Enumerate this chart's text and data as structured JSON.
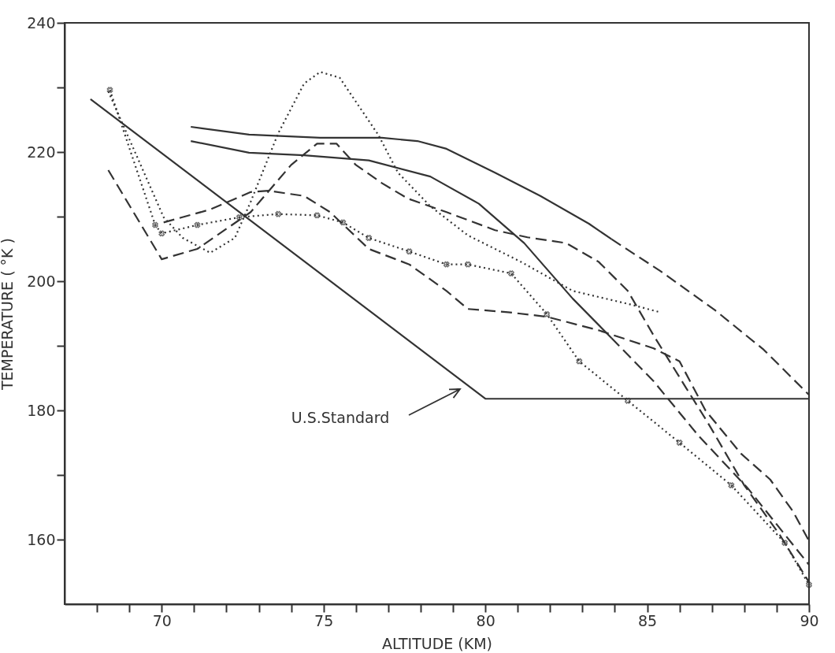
{
  "chart_data": {
    "type": "line",
    "xlabel": "ALTITUDE  (KM)",
    "ylabel": "TEMPERATURE  ( °K )",
    "xlim": [
      67,
      90
    ],
    "ylim": [
      150,
      240
    ],
    "xticks": [
      {
        "value": 68,
        "label": null
      },
      {
        "value": 69,
        "label": null
      },
      70,
      {
        "value": 71,
        "label": null
      },
      {
        "value": 72,
        "label": null
      },
      {
        "value": 73,
        "label": null
      },
      {
        "value": 74,
        "label": null
      },
      75,
      {
        "value": 76,
        "label": null
      },
      {
        "value": 77,
        "label": null
      },
      {
        "value": 78,
        "label": null
      },
      {
        "value": 79,
        "label": null
      },
      80,
      {
        "value": 81,
        "label": null
      },
      {
        "value": 82,
        "label": null
      },
      {
        "value": 83,
        "label": null
      },
      {
        "value": 84,
        "label": null
      },
      85,
      {
        "value": 86,
        "label": null
      },
      {
        "value": 87,
        "label": null
      },
      {
        "value": 88,
        "label": null
      },
      {
        "value": 89,
        "label": null
      },
      90
    ],
    "yticks": [
      160,
      {
        "value": 170,
        "label": null
      },
      180,
      {
        "value": 190,
        "label": null
      },
      200,
      {
        "value": 210,
        "label": null
      },
      220,
      {
        "value": 230,
        "label": null
      },
      240
    ],
    "grid": false,
    "annotations": [
      "U.S.Standard"
    ],
    "series": [
      {
        "color": "#333333",
        "line_style": "solid",
        "x": [
          67.8,
          80,
          90
        ],
        "values": [
          228.2,
          181.8,
          181.8
        ]
      },
      {
        "color": "#333333",
        "line_style": "solid",
        "x": [
          70.9,
          72.7,
          74.9,
          76.8,
          77.9,
          78.8,
          80.3,
          81.7,
          83.2,
          83.9
        ],
        "values": [
          223.9,
          222.7,
          222.2,
          222.2,
          221.7,
          220.5,
          216.8,
          213.2,
          208.9,
          206.5
        ]
      },
      {
        "color": "#333333",
        "line_style": "dashed",
        "x": [
          83.9,
          85.4,
          87.1,
          88.6,
          90
        ],
        "values": [
          206.5,
          201.6,
          195.5,
          189.4,
          182.4
        ]
      },
      {
        "color": "#333333",
        "line_style": "solid",
        "x": [
          70.9,
          72.7,
          74.4,
          76.4,
          78.3,
          79.8,
          81.2,
          82.7,
          83.9
        ],
        "values": [
          221.7,
          219.9,
          219.5,
          218.7,
          216.2,
          212,
          205.9,
          197.3,
          191.2
        ]
      },
      {
        "color": "#333333",
        "line_style": "dashed",
        "x": [
          83.9,
          85.2,
          86.6,
          88.1,
          90
        ],
        "values": [
          191.2,
          184.5,
          176,
          168,
          156.1
        ]
      },
      {
        "color": "#333333",
        "line_style": "dotted",
        "x": [
          68.35,
          70.06,
          70.65,
          71.5,
          72.26,
          72.75,
          73.6,
          74.4,
          74.9,
          75.5,
          76.7,
          77.3,
          78.3,
          79.46,
          81.1,
          82.7,
          84.4,
          85.4
        ],
        "values": [
          229.4,
          209.9,
          206.7,
          204.4,
          206.7,
          212.3,
          222.9,
          230.6,
          232.4,
          231.5,
          222.6,
          216.8,
          211.6,
          207.1,
          203,
          198.5,
          196.5,
          195.2
        ]
      },
      {
        "color": "#333333",
        "line_style": "dotted",
        "marker": "cross",
        "x": [
          68.4,
          69.8,
          70,
          71.1,
          72.4,
          73.6,
          74.8,
          75.6,
          76.4,
          77.65,
          78.8,
          79.46,
          80.8,
          81.9,
          82.9,
          84.4,
          86,
          87.6,
          89.25,
          90
        ],
        "values": [
          229.6,
          208.7,
          207.4,
          208.7,
          209.9,
          210.4,
          210.2,
          209.1,
          206.7,
          204.6,
          202.6,
          202.6,
          201.2,
          194.9,
          187.6,
          181.5,
          175,
          168.4,
          159.5,
          153
        ]
      },
      {
        "color": "#333333",
        "line_style": "dashed",
        "x": [
          68.35,
          70,
          71.1,
          72.75,
          74,
          74.8,
          75.4,
          76,
          76.8,
          77.6,
          78.8,
          80.3,
          81.3,
          82.5,
          83.5,
          84.4,
          85.2,
          86.2,
          86.8,
          87.05,
          88,
          89.1,
          90
        ],
        "values": [
          217.2,
          203.4,
          205,
          210.7,
          218,
          221.3,
          221.3,
          218,
          215.2,
          212.8,
          210.7,
          207.9,
          206.8,
          205.9,
          203,
          198.5,
          191.6,
          183.5,
          178.7,
          176.6,
          168.4,
          160.7,
          153.4
        ]
      },
      {
        "color": "#333333",
        "line_style": "dashed",
        "x": [
          70.06,
          71.5,
          72.75,
          73.3,
          74.4,
          75.2,
          76.4,
          77.65,
          78.8,
          79.46,
          80.7,
          81.9,
          83.5,
          85.2,
          86,
          86.8,
          87.9,
          88.8,
          89.5,
          90
        ],
        "values": [
          209.1,
          211.1,
          213.8,
          214,
          213.2,
          210.7,
          205,
          202.6,
          198.5,
          195.7,
          195.2,
          194.5,
          192.4,
          189.6,
          187.6,
          180,
          173.3,
          169.3,
          164.4,
          159.8
        ]
      }
    ]
  }
}
